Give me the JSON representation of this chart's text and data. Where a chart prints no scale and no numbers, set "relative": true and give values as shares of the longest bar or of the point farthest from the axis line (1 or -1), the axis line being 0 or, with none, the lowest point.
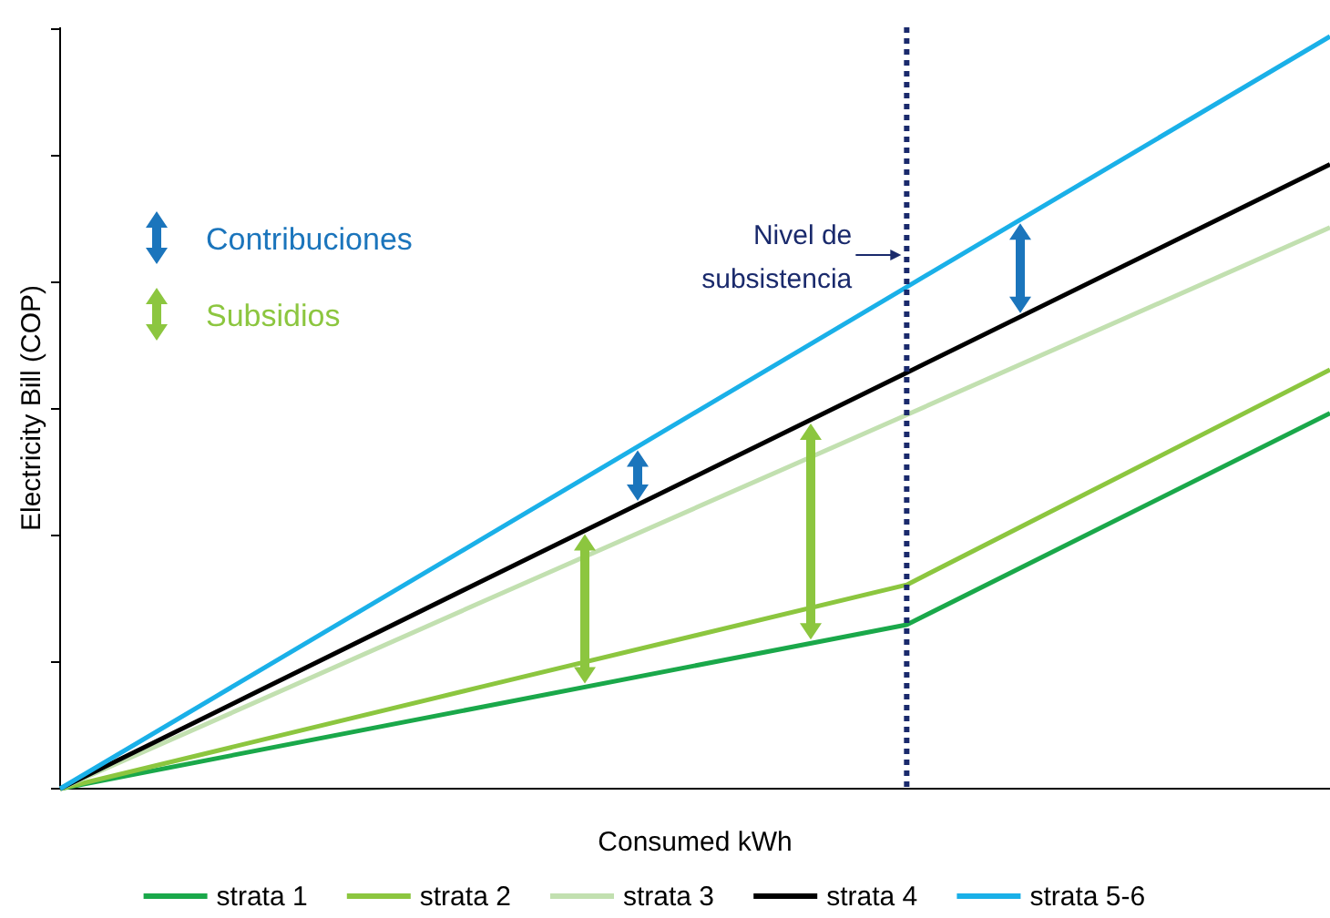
{
  "chart_data": {
    "type": "line",
    "relative": true,
    "xlabel": "Consumed kWh",
    "ylabel": "Electricity Bill (COP)",
    "categories": [
      null,
      null,
      null,
      null
    ],
    "legend": "bottom",
    "line_style": "solid",
    "series": [
      {
        "name": "strata 1",
        "color": "#1aa84a",
        "values": [
          0,
          0.109,
          0.218,
          0.499
        ]
      },
      {
        "name": "strata 2",
        "color": "#8cc63f",
        "values": [
          0,
          0.136,
          0.271,
          0.557
        ]
      },
      {
        "name": "strata 3",
        "color": "#c2e0b0",
        "values": [
          0,
          0.249,
          0.497,
          0.746
        ]
      },
      {
        "name": "strata 4",
        "color": "#000000",
        "values": [
          0,
          0.277,
          0.553,
          0.83
        ]
      },
      {
        "name": "strata 5-6",
        "color": "#1ab0e8",
        "values": [
          0,
          0.333,
          0.667,
          1
        ]
      }
    ],
    "ref_lines": [
      {
        "axis": "x",
        "label": "Nivel de subsistencia",
        "color": "#1a2a6c",
        "line_style": "dotted"
      }
    ],
    "annotations": [
      "Contribuciones",
      "Subsidios"
    ]
  }
}
